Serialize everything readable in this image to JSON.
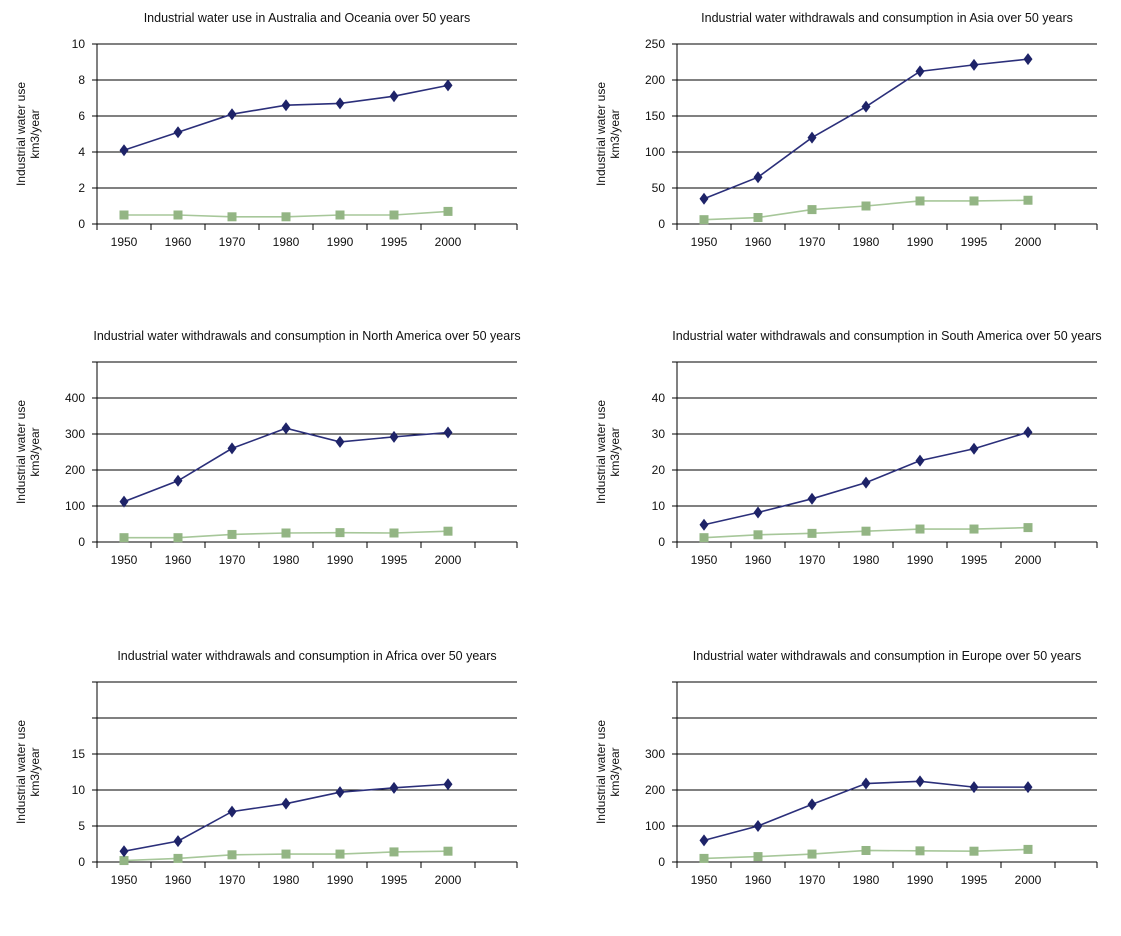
{
  "chart_data": [
    {
      "type": "line",
      "title": "Industrial water use in Australia and Oceania over 50 years",
      "ylabel": "Industrial water use km3/year",
      "xlabel": "",
      "categories": [
        "1950",
        "1960",
        "1970",
        "1980",
        "1990",
        "1995",
        "2000"
      ],
      "ylim": [
        0,
        10
      ],
      "yticks": [
        0,
        2,
        4,
        6,
        8,
        10
      ],
      "gridlines": [
        0,
        2,
        4,
        6,
        8,
        10
      ],
      "series": [
        {
          "values": [
            4.1,
            5.1,
            6.1,
            6.6,
            6.7,
            7.1,
            7.7
          ]
        },
        {
          "values": [
            0.5,
            0.5,
            0.4,
            0.4,
            0.5,
            0.5,
            0.7
          ]
        }
      ]
    },
    {
      "type": "line",
      "title": "Industrial water withdrawals and consumption in Asia over 50 years",
      "ylabel": "Industrial water use km3/year",
      "xlabel": "",
      "categories": [
        "1950",
        "1960",
        "1970",
        "1980",
        "1990",
        "1995",
        "2000"
      ],
      "ylim": [
        0,
        250
      ],
      "yticks": [
        0,
        50,
        100,
        150,
        200,
        250
      ],
      "gridlines": [
        0,
        50,
        100,
        150,
        200,
        250
      ],
      "series": [
        {
          "values": [
            35,
            65,
            120,
            163,
            212,
            221,
            229
          ]
        },
        {
          "values": [
            6,
            9,
            20,
            25,
            32,
            32,
            33
          ]
        }
      ]
    },
    {
      "type": "line",
      "title": "Industrial water withdrawals and consumption in North America over 50 years",
      "ylabel": "Industrial water use km3/year",
      "xlabel": "",
      "categories": [
        "1950",
        "1960",
        "1970",
        "1980",
        "1990",
        "1995",
        "2000"
      ],
      "ylim": [
        0,
        500
      ],
      "yticks": [
        0,
        100,
        200,
        300,
        400
      ],
      "gridlines": [
        0,
        100,
        200,
        300,
        400,
        500
      ],
      "series": [
        {
          "values": [
            112,
            170,
            260,
            316,
            278,
            292,
            304
          ]
        },
        {
          "values": [
            12,
            12,
            21,
            25,
            26,
            25,
            30
          ]
        }
      ]
    },
    {
      "type": "line",
      "title": "Industrial water withdrawals and consumption in South America over 50 years",
      "ylabel": "Industrial water use km3/year",
      "xlabel": "",
      "categories": [
        "1950",
        "1960",
        "1970",
        "1980",
        "1990",
        "1995",
        "2000"
      ],
      "ylim": [
        0,
        50
      ],
      "yticks": [
        0,
        10,
        20,
        30,
        40
      ],
      "gridlines": [
        0,
        10,
        20,
        30,
        40,
        50
      ],
      "series": [
        {
          "values": [
            4.8,
            8.2,
            12,
            16.5,
            22.6,
            25.9,
            30.5
          ]
        },
        {
          "values": [
            1.2,
            2,
            2.4,
            3,
            3.6,
            3.6,
            4
          ]
        }
      ]
    },
    {
      "type": "line",
      "title": "Industrial water withdrawals and consumption in Africa over 50 years",
      "ylabel": "Industrial water use km3/year",
      "xlabel": "",
      "categories": [
        "1950",
        "1960",
        "1970",
        "1980",
        "1990",
        "1995",
        "2000"
      ],
      "ylim": [
        0,
        25
      ],
      "yticks": [
        0,
        5,
        10,
        15
      ],
      "gridlines": [
        0,
        5,
        10,
        15,
        20,
        25
      ],
      "series": [
        {
          "values": [
            1.5,
            2.9,
            7,
            8.1,
            9.7,
            10.3,
            10.8
          ]
        },
        {
          "values": [
            0.2,
            0.5,
            1,
            1.1,
            1.1,
            1.4,
            1.5
          ]
        }
      ]
    },
    {
      "type": "line",
      "title": "Industrial water withdrawals and consumption in Europe over 50 years",
      "ylabel": "Industrial water use km3/year",
      "xlabel": "",
      "categories": [
        "1950",
        "1960",
        "1970",
        "1980",
        "1990",
        "1995",
        "2000"
      ],
      "ylim": [
        0,
        500
      ],
      "yticks": [
        0,
        100,
        200,
        300
      ],
      "gridlines": [
        0,
        100,
        200,
        300,
        400,
        500
      ],
      "series": [
        {
          "values": [
            60,
            100,
            160,
            218,
            224,
            208,
            208
          ]
        },
        {
          "values": [
            10,
            15,
            22,
            32,
            31,
            30,
            35
          ]
        }
      ]
    }
  ]
}
